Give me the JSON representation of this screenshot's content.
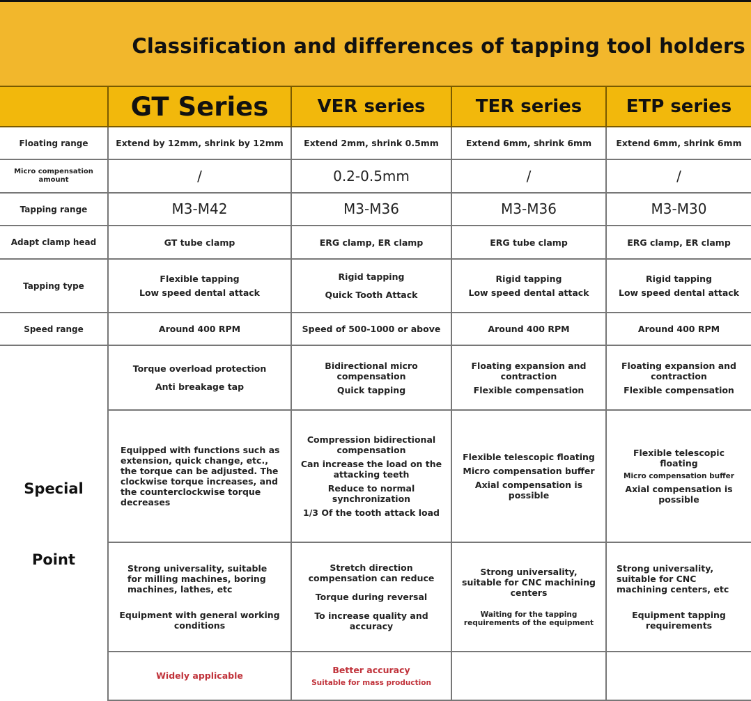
{
  "title": "Classification and differences of tapping tool holders",
  "colors": {
    "header_band": "#f2b72c",
    "header_row": "#f2b80c",
    "accent_red": "#c0323a"
  },
  "columns": [
    "GT Series",
    "VER series",
    "TER series",
    "ETP series"
  ],
  "rows": [
    {
      "label": "Floating range",
      "cells": [
        [
          "Extend by 12mm, shrink by 12mm"
        ],
        [
          "Extend 2mm, shrink 0.5mm"
        ],
        [
          "Extend 6mm, shrink 6mm"
        ],
        [
          "Extend 6mm, shrink 6mm"
        ]
      ]
    },
    {
      "label": "Micro compensation amount",
      "cells": [
        [
          "/"
        ],
        [
          "0.2-0.5mm"
        ],
        [
          "/"
        ],
        [
          "/"
        ]
      ]
    },
    {
      "label": "Tapping range",
      "cells": [
        [
          "M3-M42"
        ],
        [
          "M3-M36"
        ],
        [
          "M3-M36"
        ],
        [
          "M3-M30"
        ]
      ]
    },
    {
      "label": "Adapt clamp head",
      "cells": [
        [
          "GT tube clamp"
        ],
        [
          "ERG clamp, ER clamp"
        ],
        [
          "ERG tube clamp"
        ],
        [
          "ERG clamp, ER clamp"
        ]
      ]
    },
    {
      "label": "Tapping type",
      "cells": [
        [
          "Flexible tapping",
          "Low speed dental attack"
        ],
        [
          "Rigid tapping",
          "Quick Tooth Attack"
        ],
        [
          "Rigid tapping",
          "Low speed dental attack"
        ],
        [
          "Rigid tapping",
          "Low speed dental attack"
        ]
      ]
    },
    {
      "label": "Speed range",
      "cells": [
        [
          "Around 400 RPM"
        ],
        [
          "Speed of 500-1000 or above"
        ],
        [
          "Around 400 RPM"
        ],
        [
          "Around 400 RPM"
        ]
      ]
    }
  ],
  "special": {
    "label_1": "Special",
    "label_2": "Point",
    "rows": [
      [
        [
          "Torque overload protection",
          "Anti breakage tap"
        ],
        [
          "Bidirectional micro compensation",
          "Quick tapping"
        ],
        [
          "Floating expansion and contraction",
          "Flexible compensation"
        ],
        [
          "Floating expansion and contraction",
          "Flexible compensation"
        ]
      ],
      [
        [
          "Equipped with functions such as extension, quick change, etc., the torque can be adjusted. The clockwise torque increases, and the counterclockwise torque decreases"
        ],
        [
          "Compression bidirectional compensation",
          "Can increase the load on the attacking teeth",
          "Reduce to normal synchronization",
          "1/3 Of the tooth attack load"
        ],
        [
          "Flexible telescopic floating",
          "Micro compensation buffer",
          "Axial compensation is possible"
        ],
        [
          "Flexible telescopic floating",
          "Micro compensation buffer",
          "Axial compensation is possible"
        ]
      ],
      [
        [
          "Strong universality, suitable for milling machines, boring machines, lathes, etc",
          "Equipment with general working conditions"
        ],
        [
          "Stretch direction compensation can reduce",
          "Torque during reversal",
          "To increase quality and accuracy"
        ],
        [
          "Strong universality, suitable for CNC machining centers",
          "Waiting for the tapping requirements of the equipment"
        ],
        [
          "Strong universality, suitable for CNC machining centers, etc",
          "Equipment tapping requirements"
        ]
      ],
      [
        [
          "Widely applicable"
        ],
        [
          "Better accuracy",
          "Suitable for mass production"
        ],
        [],
        []
      ]
    ]
  }
}
